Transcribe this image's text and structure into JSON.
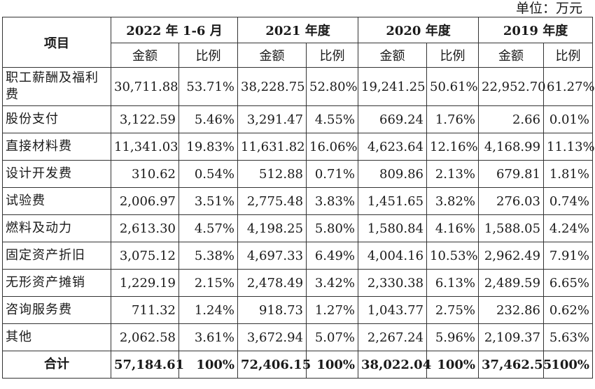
{
  "unit_label": "单位：万元",
  "headers": {
    "item": "项目",
    "periods": [
      "2022 年 1-6 月",
      "2021 年度",
      "2020 年度",
      "2019 年度"
    ],
    "amount": "金额",
    "ratio": "比例"
  },
  "rows": [
    {
      "label": "职工薪酬及福利费",
      "values": [
        "30,711.88",
        "53.71%",
        "38,228.75",
        "52.80%",
        "19,241.25",
        "50.61%",
        "22,952.70",
        "61.27%"
      ]
    },
    {
      "label": "股份支付",
      "values": [
        "3,122.59",
        "5.46%",
        "3,291.47",
        "4.55%",
        "669.24",
        "1.76%",
        "2.66",
        "0.01%"
      ]
    },
    {
      "label": "直接材料费",
      "values": [
        "11,341.03",
        "19.83%",
        "11,631.82",
        "16.06%",
        "4,623.64",
        "12.16%",
        "4,168.99",
        "11.13%"
      ]
    },
    {
      "label": "设计开发费",
      "values": [
        "310.62",
        "0.54%",
        "512.88",
        "0.71%",
        "809.86",
        "2.13%",
        "679.81",
        "1.81%"
      ]
    },
    {
      "label": "试验费",
      "values": [
        "2,006.97",
        "3.51%",
        "2,775.48",
        "3.83%",
        "1,451.65",
        "3.82%",
        "276.03",
        "0.74%"
      ]
    },
    {
      "label": "燃料及动力",
      "values": [
        "2,613.30",
        "4.57%",
        "4,198.25",
        "5.80%",
        "1,580.84",
        "4.16%",
        "1,588.05",
        "4.24%"
      ]
    },
    {
      "label": "固定资产折旧",
      "values": [
        "3,075.12",
        "5.38%",
        "4,697.33",
        "6.49%",
        "4,004.16",
        "10.53%",
        "2,962.49",
        "7.91%"
      ]
    },
    {
      "label": "无形资产摊销",
      "values": [
        "1,229.19",
        "2.15%",
        "2,478.49",
        "3.42%",
        "2,330.38",
        "6.13%",
        "2,489.59",
        "6.65%"
      ]
    },
    {
      "label": "咨询服务费",
      "values": [
        "711.32",
        "1.24%",
        "918.73",
        "1.27%",
        "1,043.77",
        "2.75%",
        "232.86",
        "0.62%"
      ]
    },
    {
      "label": "其他",
      "values": [
        "2,062.58",
        "3.61%",
        "3,672.94",
        "5.07%",
        "2,267.24",
        "5.96%",
        "2,109.37",
        "5.63%"
      ]
    }
  ],
  "total": {
    "label": "合计",
    "values": [
      "57,184.61",
      "100%",
      "72,406.15",
      "100%",
      "38,022.04",
      "100%",
      "37,462.55",
      "100%"
    ]
  }
}
